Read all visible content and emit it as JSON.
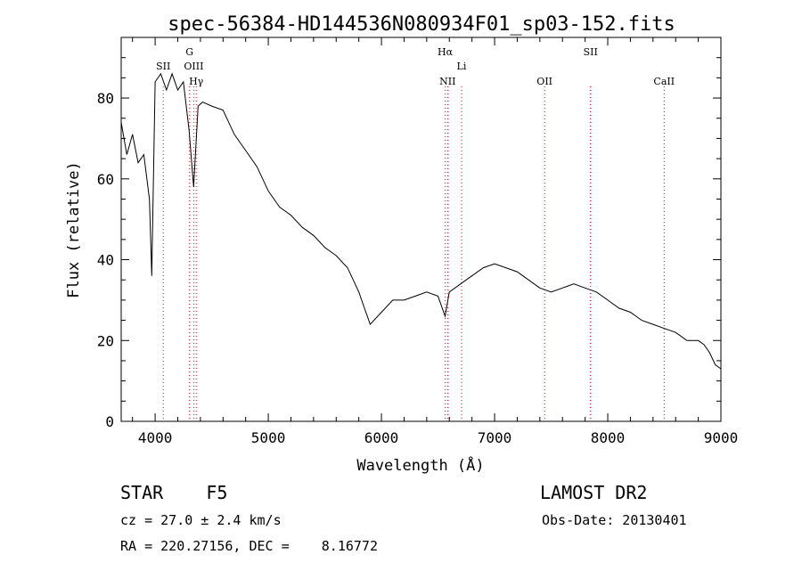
{
  "chart_data": {
    "type": "line",
    "title": "spec-56384-HD144536N080934F01_sp03-152.fits",
    "xlabel": "Wavelength (Å)",
    "ylabel": "Flux (relative)",
    "xlim": [
      3700,
      9000
    ],
    "ylim": [
      0,
      95
    ],
    "x_ticks": [
      "4000",
      "5000",
      "6000",
      "7000",
      "8000",
      "9000"
    ],
    "y_ticks": [
      "0",
      "20",
      "40",
      "60",
      "80"
    ],
    "grid": false,
    "legend": "none",
    "series": [
      {
        "color": "#000000",
        "x": [
          3700,
          3750,
          3800,
          3850,
          3900,
          3950,
          3970,
          4000,
          4050,
          4100,
          4150,
          4200,
          4250,
          4300,
          4340,
          4380,
          4420,
          4500,
          4600,
          4700,
          4800,
          4900,
          5000,
          5100,
          5200,
          5300,
          5400,
          5500,
          5600,
          5700,
          5800,
          5850,
          5900,
          6000,
          6100,
          6200,
          6300,
          6400,
          6500,
          6563,
          6600,
          6700,
          6800,
          6900,
          7000,
          7100,
          7200,
          7300,
          7400,
          7500,
          7600,
          7700,
          7800,
          7900,
          8000,
          8100,
          8200,
          8300,
          8400,
          8500,
          8600,
          8700,
          8800,
          8850,
          8900,
          8950,
          9000
        ],
        "y": [
          74,
          66,
          71,
          64,
          66,
          55,
          36,
          84,
          86,
          82,
          86,
          82,
          84,
          72,
          58,
          78,
          79,
          78,
          77,
          71,
          67,
          63,
          57,
          53,
          51,
          48,
          46,
          43,
          41,
          38,
          32,
          28,
          24,
          27,
          30,
          30,
          31,
          32,
          31,
          26,
          32,
          34,
          36,
          38,
          39,
          38,
          37,
          35,
          33,
          32,
          33,
          34,
          33,
          32,
          30,
          28,
          27,
          25,
          24,
          23,
          22,
          20,
          20,
          19,
          17,
          14,
          13
        ]
      }
    ],
    "line_markers": [
      {
        "label": "SII",
        "x": 4072
      },
      {
        "label": "G",
        "x": 4304
      },
      {
        "label": "OIII",
        "x": 4341
      },
      {
        "label": "Hγ",
        "x": 4363
      },
      {
        "label": "Hα",
        "x": 6563
      },
      {
        "label": "NII",
        "x": 6585
      },
      {
        "label": "Li",
        "x": 6708
      },
      {
        "label": "OII",
        "x": 7442
      },
      {
        "label": "SII",
        "x": 7848
      },
      {
        "label": "CaII",
        "x": 8498
      }
    ]
  },
  "info": {
    "object": "STAR    F5",
    "survey": "LAMOST DR2",
    "cz": "cz = 27.0 ± 2.4 km/s",
    "obs_date": "Obs-Date: 20130401",
    "radec": "RA = 220.27156, DEC =    8.16772"
  }
}
